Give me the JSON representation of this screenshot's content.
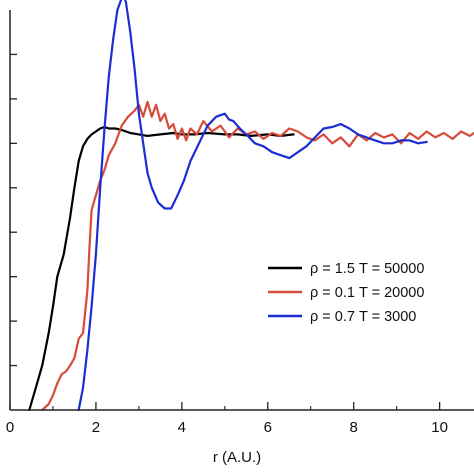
{
  "chart_data": {
    "type": "line",
    "xlabel": "r (A.U.)",
    "ylabel": "",
    "xlim": [
      0,
      10.8
    ],
    "ylim": [
      0,
      2.7
    ],
    "x_ticks": [
      0,
      2,
      4,
      6,
      8,
      10
    ],
    "x_tick_labels": [
      "0",
      "2",
      "4",
      "6",
      "8",
      "10"
    ],
    "y_ticks": [
      0.3,
      0.6,
      0.9,
      1.2,
      1.5,
      1.8,
      2.1,
      2.4
    ],
    "grid": false,
    "legend_position": "lower-right",
    "series": [
      {
        "name": "ρ = 1.5 T = 50000",
        "color": "#000000",
        "x": [
          0.45,
          0.6,
          0.75,
          0.9,
          1.0,
          1.1,
          1.25,
          1.4,
          1.5,
          1.6,
          1.7,
          1.8,
          1.9,
          2.0,
          2.1,
          2.2,
          2.3,
          2.45,
          2.6,
          2.8,
          3.0,
          3.2,
          3.5,
          3.8,
          4.0,
          4.3,
          4.6,
          5.0,
          5.3,
          5.6,
          6.0,
          6.3,
          6.6
        ],
        "y": [
          0.0,
          0.15,
          0.3,
          0.52,
          0.7,
          0.9,
          1.05,
          1.3,
          1.5,
          1.68,
          1.78,
          1.83,
          1.86,
          1.88,
          1.9,
          1.91,
          1.9,
          1.9,
          1.89,
          1.87,
          1.86,
          1.85,
          1.86,
          1.87,
          1.86,
          1.86,
          1.87,
          1.86,
          1.86,
          1.85,
          1.86,
          1.85,
          1.86
        ]
      },
      {
        "name": "ρ = 0.1 T = 20000",
        "color": "#d64b3a",
        "x": [
          0.75,
          0.9,
          1.0,
          1.1,
          1.2,
          1.3,
          1.4,
          1.5,
          1.6,
          1.7,
          1.8,
          1.85,
          1.9,
          2.0,
          2.1,
          2.2,
          2.3,
          2.45,
          2.6,
          2.75,
          2.9,
          3.0,
          3.1,
          3.2,
          3.3,
          3.4,
          3.5,
          3.6,
          3.7,
          3.8,
          3.9,
          4.0,
          4.1,
          4.2,
          4.35,
          4.5,
          4.7,
          4.9,
          5.1,
          5.3,
          5.5,
          5.7,
          5.9,
          6.1,
          6.3,
          6.5,
          6.7,
          6.9,
          7.1,
          7.3,
          7.5,
          7.7,
          7.9,
          8.1,
          8.3,
          8.5,
          8.7,
          8.9,
          9.1,
          9.3,
          9.5,
          9.7,
          9.9,
          10.1,
          10.3,
          10.5,
          10.7,
          10.8
        ],
        "y": [
          0.0,
          0.04,
          0.1,
          0.18,
          0.24,
          0.26,
          0.3,
          0.35,
          0.48,
          0.52,
          0.8,
          1.1,
          1.35,
          1.45,
          1.55,
          1.62,
          1.72,
          1.8,
          1.92,
          1.98,
          2.02,
          2.06,
          1.98,
          2.08,
          1.98,
          2.06,
          1.95,
          2.0,
          1.9,
          1.93,
          1.83,
          1.9,
          1.82,
          1.9,
          1.86,
          1.95,
          1.88,
          1.92,
          1.84,
          1.9,
          1.86,
          1.88,
          1.83,
          1.87,
          1.85,
          1.9,
          1.88,
          1.84,
          1.82,
          1.86,
          1.8,
          1.84,
          1.78,
          1.86,
          1.82,
          1.87,
          1.84,
          1.86,
          1.8,
          1.87,
          1.83,
          1.88,
          1.84,
          1.87,
          1.83,
          1.88,
          1.85,
          1.87
        ]
      },
      {
        "name": "ρ = 0.7 T = 3000",
        "color": "#1a2ed4",
        "x": [
          1.6,
          1.7,
          1.8,
          1.9,
          2.0,
          2.1,
          2.2,
          2.3,
          2.4,
          2.5,
          2.6,
          2.65,
          2.7,
          2.8,
          2.9,
          3.0,
          3.1,
          3.2,
          3.3,
          3.45,
          3.6,
          3.75,
          3.9,
          4.05,
          4.2,
          4.4,
          4.6,
          4.8,
          5.0,
          5.1,
          5.2,
          5.35,
          5.5,
          5.7,
          5.9,
          6.1,
          6.3,
          6.5,
          6.7,
          6.9,
          7.1,
          7.3,
          7.5,
          7.7,
          7.9,
          8.1,
          8.3,
          8.5,
          8.7,
          8.9,
          9.1,
          9.3,
          9.5,
          9.7
        ],
        "y": [
          0.0,
          0.15,
          0.4,
          0.7,
          1.05,
          1.5,
          1.9,
          2.25,
          2.5,
          2.7,
          2.78,
          2.8,
          2.75,
          2.55,
          2.3,
          2.0,
          1.8,
          1.6,
          1.5,
          1.4,
          1.36,
          1.36,
          1.45,
          1.55,
          1.68,
          1.8,
          1.92,
          1.98,
          2.0,
          1.96,
          1.95,
          1.9,
          1.86,
          1.8,
          1.78,
          1.74,
          1.72,
          1.7,
          1.74,
          1.78,
          1.84,
          1.9,
          1.91,
          1.93,
          1.9,
          1.86,
          1.84,
          1.82,
          1.8,
          1.8,
          1.82,
          1.82,
          1.8,
          1.81
        ]
      }
    ]
  }
}
